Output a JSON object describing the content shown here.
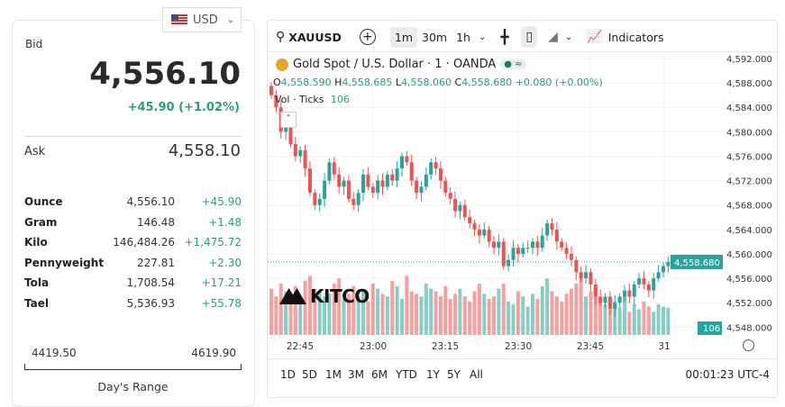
{
  "currency": {
    "label": "USD",
    "icon": "us-flag-icon"
  },
  "quote": {
    "bid_label": "Bid",
    "bid": "4,556.10",
    "change": "+45.90 (+1.02%)",
    "ask_label": "Ask",
    "ask": "4,558.10"
  },
  "units": [
    {
      "name": "Ounce",
      "value": "4,556.10",
      "change": "+45.90"
    },
    {
      "name": "Gram",
      "value": "146.48",
      "change": "+1.48"
    },
    {
      "name": "Kilo",
      "value": "146,484.26",
      "change": "+1,475.72"
    },
    {
      "name": "Pennyweight",
      "value": "227.81",
      "change": "+2.30"
    },
    {
      "name": "Tola",
      "value": "1,708.54",
      "change": "+17.21"
    },
    {
      "name": "Tael",
      "value": "5,536.93",
      "change": "+55.78"
    }
  ],
  "day_range": {
    "low": "4419.50",
    "high": "4619.90",
    "label": "Day's Range"
  },
  "toolbar": {
    "symbol": "XAUUSD",
    "intervals": [
      "1m",
      "30m",
      "1h"
    ],
    "selected_interval": "1m",
    "indicators": "Indicators"
  },
  "legend": {
    "title": "Gold Spot / U.S. Dollar · 1 · OANDA",
    "o_label": "O",
    "o": "4,558.590",
    "h_label": "H",
    "h": "4,558.685",
    "l_label": "L",
    "l": "4,558.060",
    "c_label": "C",
    "c": "4,558.680",
    "chg": "+0.080 (+0.00%)",
    "vol_label": "Vol · Ticks",
    "vol": "106"
  },
  "watermark": "KITCO",
  "ranges": [
    "1D",
    "5D",
    "1M",
    "3M",
    "6M",
    "YTD",
    "1Y",
    "5Y",
    "All"
  ],
  "clock": "00:01:23 UTC-4",
  "colors": {
    "up": "#26a69a",
    "down": "#ef5350",
    "accent": "#2a9d73"
  },
  "chart_data": {
    "type": "candlestick",
    "interval": "1m",
    "ylim": [
      4550,
      4592
    ],
    "y_ticks": [
      "4,592.000",
      "4,588.000",
      "4,584.000",
      "4,580.000",
      "4,576.000",
      "4,572.000",
      "4,568.000",
      "4,564.000",
      "4,560.000",
      "4,556.000",
      "4,552.000",
      "4,548.000"
    ],
    "x_ticks": [
      "22:45",
      "23:00",
      "23:15",
      "23:30",
      "23:45",
      "31"
    ],
    "last_price": "4,558.680",
    "last_volume": "106",
    "start_time": "22:39",
    "closes": [
      4586,
      4584,
      4580,
      4582,
      4578,
      4576,
      4577,
      4574,
      4570,
      4568,
      4569,
      4572,
      4575,
      4573,
      4571,
      4572,
      4569,
      4568,
      4570,
      4573,
      4571,
      4570,
      4572,
      4571,
      4573,
      4572,
      4574,
      4576,
      4575,
      4572,
      4570,
      4571,
      4573,
      4575,
      4574,
      4572,
      4570,
      4569,
      4567,
      4568,
      4566,
      4565,
      4564,
      4563,
      4564,
      4562,
      4561,
      4562,
      4558,
      4559,
      4561,
      4560,
      4561,
      4561,
      4562,
      4561,
      4563,
      4565,
      4564,
      4562,
      4561,
      4560,
      4559,
      4557,
      4556,
      4557,
      4555,
      4553,
      4552,
      4553,
      4551,
      4552,
      4553,
      4554,
      4553,
      4555,
      4556,
      4555,
      4554,
      4556,
      4557,
      4558,
      4558.68
    ],
    "volumes": [
      180,
      150,
      200,
      170,
      160,
      190,
      140,
      210,
      230,
      180,
      170,
      150,
      160,
      200,
      220,
      140,
      160,
      190,
      150,
      170,
      130,
      200,
      180,
      160,
      150,
      210,
      190,
      140,
      230,
      170,
      160,
      150,
      200,
      180,
      170,
      150,
      190,
      140,
      160,
      180,
      150,
      130,
      170,
      200,
      160,
      140,
      150,
      180,
      200,
      130,
      120,
      170,
      150,
      110,
      160,
      140,
      190,
      220,
      170,
      150,
      130,
      160,
      180,
      200,
      230,
      150,
      170,
      190,
      140,
      120,
      100,
      130,
      110,
      150,
      90,
      120,
      100,
      130,
      110,
      90,
      120,
      110,
      106
    ]
  }
}
